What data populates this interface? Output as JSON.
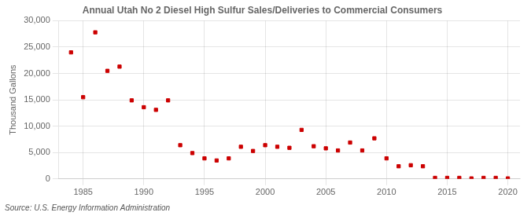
{
  "chart_data": {
    "type": "scatter",
    "title": "Annual Utah No 2 Diesel High Sulfur Sales/Deliveries to Commercial Consumers",
    "y_label": "Thousand Gallons",
    "annotations": [
      "Source: U.S. Energy Information Administration"
    ],
    "x": [
      1984,
      1985,
      1986,
      1987,
      1988,
      1989,
      1990,
      1991,
      1992,
      1993,
      1994,
      1995,
      1996,
      1997,
      1998,
      1999,
      2000,
      2001,
      2002,
      2003,
      2004,
      2005,
      2006,
      2007,
      2008,
      2009,
      2010,
      2011,
      2012,
      2013,
      2014,
      2015,
      2016,
      2017,
      2018,
      2019,
      2020
    ],
    "values": [
      24000,
      15500,
      27800,
      20500,
      21300,
      14900,
      13600,
      13100,
      14900,
      6400,
      4900,
      3900,
      3500,
      3900,
      6100,
      5300,
      6400,
      6100,
      5900,
      9300,
      6200,
      5800,
      5400,
      6900,
      5400,
      7700,
      3900,
      2400,
      2600,
      2400,
      200,
      200,
      200,
      100,
      200,
      200,
      100
    ],
    "color": "#cc0000",
    "marker": "square",
    "xlim": [
      1983,
      2021
    ],
    "xticks": [
      1985,
      1990,
      1995,
      2000,
      2005,
      2010,
      2015,
      2020
    ],
    "ylim": [
      0,
      30000
    ],
    "yticks": [
      0,
      {
        "value": 5000,
        "label": "5,000"
      },
      {
        "value": 10000,
        "label": "10,000"
      },
      {
        "value": 15000,
        "label": "15,000"
      },
      {
        "value": 20000,
        "label": "20,000"
      },
      {
        "value": 25000,
        "label": "25,000"
      },
      {
        "value": 30000,
        "label": "30,000"
      }
    ],
    "grid": true
  }
}
